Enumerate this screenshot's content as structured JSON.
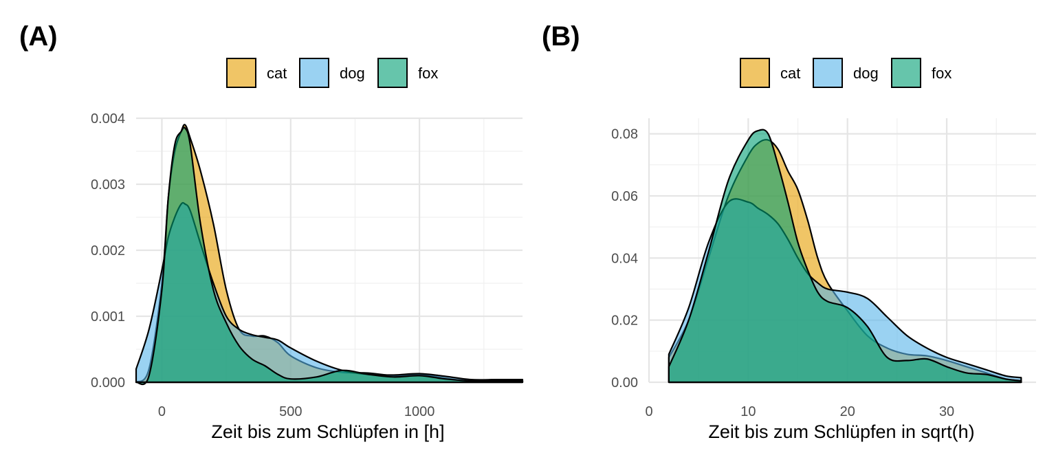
{
  "colors": {
    "cat": "#E69F00",
    "dog": "#56B4E9",
    "fox": "#009E73"
  },
  "chart_data": [
    {
      "type": "area",
      "panel_label": "(A)",
      "xlabel": "Zeit bis zum Schlüpfen in [h]",
      "ylabel": "",
      "xlim": [
        -100,
        1400
      ],
      "ylim": [
        0,
        0.004
      ],
      "x_ticks": [
        0,
        500,
        1000
      ],
      "x_tick_labels": [
        "0",
        "500",
        "1000"
      ],
      "y_ticks": [
        0,
        0.001,
        0.002,
        0.003,
        0.004
      ],
      "y_tick_labels": [
        "0.000",
        "0.001",
        "0.002",
        "0.003",
        "0.004"
      ],
      "grid": true,
      "legend_position": "top",
      "legend": [
        "cat",
        "dog",
        "fox"
      ],
      "series": [
        {
          "name": "cat",
          "x": [
            -100,
            -50,
            0,
            25,
            50,
            75,
            90,
            110,
            150,
            200,
            250,
            300,
            350,
            400,
            450,
            500,
            600,
            700,
            800,
            900,
            1000,
            1100,
            1200,
            1300,
            1400
          ],
          "y": [
            0,
            0.0002,
            0.0015,
            0.0028,
            0.0035,
            0.0038,
            0.0039,
            0.0037,
            0.0032,
            0.0024,
            0.0014,
            0.0008,
            0.0007,
            0.0007,
            0.0006,
            0.0004,
            0.00022,
            0.00015,
            0.00014,
            0.0001,
            0.00012,
            6e-05,
            2e-05,
            4e-05,
            2e-05
          ]
        },
        {
          "name": "dog",
          "x": [
            -100,
            -50,
            0,
            25,
            50,
            75,
            90,
            110,
            150,
            200,
            250,
            300,
            350,
            400,
            450,
            500,
            600,
            700,
            800,
            900,
            1000,
            1100,
            1200,
            1300,
            1400
          ],
          "y": [
            0.0002,
            0.0008,
            0.0017,
            0.0022,
            0.0025,
            0.0027,
            0.0027,
            0.0026,
            0.0021,
            0.0015,
            0.001,
            0.0008,
            0.00072,
            0.00068,
            0.00064,
            0.00052,
            0.00032,
            0.00018,
            0.00012,
            0.00011,
            0.00013,
            9e-05,
            4e-05,
            4e-05,
            4e-05
          ]
        },
        {
          "name": "fox",
          "x": [
            -100,
            -50,
            0,
            25,
            50,
            75,
            90,
            110,
            150,
            200,
            250,
            300,
            350,
            400,
            450,
            500,
            600,
            700,
            800,
            900,
            1000,
            1100,
            1200,
            1300,
            1400
          ],
          "y": [
            0,
            0.0001,
            0.0014,
            0.0028,
            0.0036,
            0.0038,
            0.00385,
            0.0036,
            0.0024,
            0.0014,
            0.0009,
            0.00055,
            0.00035,
            0.00025,
            0.00012,
            5e-05,
            8e-05,
            0.00018,
            0.00012,
            8e-05,
            0.0001,
            5e-05,
            2e-05,
            2e-05,
            2e-05
          ]
        }
      ]
    },
    {
      "type": "area",
      "panel_label": "(B)",
      "xlabel": "Zeit bis zum Schlüpfen in sqrt(h)",
      "ylabel": "",
      "xlim": [
        0,
        39
      ],
      "ylim": [
        0,
        0.085
      ],
      "x_ticks": [
        0,
        10,
        20,
        30
      ],
      "x_tick_labels": [
        "0",
        "10",
        "20",
        "30"
      ],
      "y_ticks": [
        0,
        0.02,
        0.04,
        0.06,
        0.08
      ],
      "y_tick_labels": [
        "0.00",
        "0.02",
        "0.04",
        "0.06",
        "0.08"
      ],
      "grid": true,
      "legend_position": "top",
      "legend": [
        "cat",
        "dog",
        "fox"
      ],
      "series": [
        {
          "name": "cat",
          "x": [
            2,
            4,
            6,
            8,
            10,
            11,
            12,
            13,
            14,
            15,
            16,
            17,
            18,
            20,
            22,
            24,
            26,
            28,
            30,
            32,
            34,
            36,
            37.5
          ],
          "y": [
            0.008,
            0.02,
            0.04,
            0.06,
            0.073,
            0.077,
            0.078,
            0.075,
            0.068,
            0.062,
            0.052,
            0.04,
            0.032,
            0.023,
            0.015,
            0.011,
            0.009,
            0.0085,
            0.007,
            0.005,
            0.003,
            0.001,
            0.0005
          ]
        },
        {
          "name": "dog",
          "x": [
            2,
            4,
            6,
            8,
            10,
            11,
            12,
            13,
            14,
            15,
            16,
            17,
            18,
            20,
            22,
            24,
            26,
            28,
            30,
            32,
            34,
            36,
            37.5
          ],
          "y": [
            0.009,
            0.024,
            0.045,
            0.058,
            0.058,
            0.056,
            0.054,
            0.051,
            0.046,
            0.04,
            0.035,
            0.032,
            0.03,
            0.029,
            0.027,
            0.021,
            0.015,
            0.011,
            0.008,
            0.006,
            0.004,
            0.002,
            0.0015
          ]
        },
        {
          "name": "fox",
          "x": [
            2,
            4,
            6,
            8,
            10,
            11,
            12,
            13,
            14,
            15,
            16,
            17,
            18,
            20,
            22,
            24,
            26,
            28,
            30,
            32,
            34,
            36,
            37.5
          ],
          "y": [
            0.005,
            0.02,
            0.042,
            0.065,
            0.078,
            0.081,
            0.08,
            0.07,
            0.058,
            0.045,
            0.036,
            0.029,
            0.026,
            0.024,
            0.018,
            0.008,
            0.007,
            0.0075,
            0.005,
            0.003,
            0.0025,
            0.001,
            0.0005
          ]
        }
      ]
    }
  ]
}
